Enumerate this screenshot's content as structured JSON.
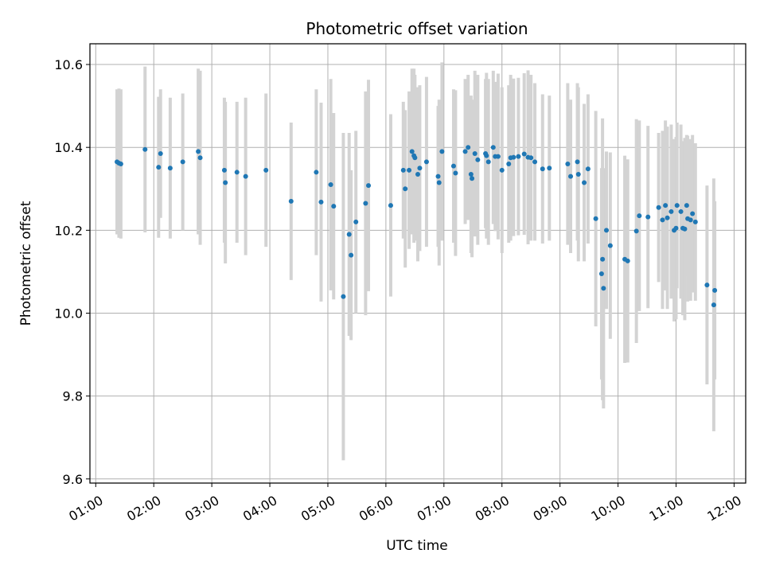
{
  "chart_data": {
    "type": "scatter",
    "title": "Photometric offset variation",
    "xlabel": "UTC time",
    "ylabel": "Photometric offset",
    "xlim": [
      "00:54",
      "12:12"
    ],
    "ylim": [
      9.59,
      10.65
    ],
    "yticks": [
      9.6,
      9.8,
      10.0,
      10.2,
      10.4,
      10.6
    ],
    "xticks": [
      "01:00",
      "02:00",
      "03:00",
      "04:00",
      "05:00",
      "06:00",
      "07:00",
      "08:00",
      "09:00",
      "10:00",
      "11:00",
      "12:00"
    ],
    "grid": true,
    "colors": {
      "points": "#1f77b4",
      "errorbars": "#d3d3d3",
      "grid": "#b0b0b0"
    },
    "series": [
      {
        "points": [
          [
            "01:22",
            10.365,
            0.175
          ],
          [
            "01:24",
            10.362,
            0.18
          ],
          [
            "01:26",
            10.36,
            0.18
          ],
          [
            "01:51",
            10.395,
            0.2
          ],
          [
            "02:05",
            10.352,
            0.17
          ],
          [
            "02:07",
            10.385,
            0.155
          ],
          [
            "02:17",
            10.35,
            0.17
          ],
          [
            "02:30",
            10.365,
            0.165
          ],
          [
            "02:46",
            10.39,
            0.2
          ],
          [
            "02:48",
            10.375,
            0.21
          ],
          [
            "03:13",
            10.345,
            0.175
          ],
          [
            "03:14",
            10.315,
            0.195
          ],
          [
            "03:26",
            10.34,
            0.17
          ],
          [
            "03:35",
            10.33,
            0.19
          ],
          [
            "03:56",
            10.345,
            0.185
          ],
          [
            "04:22",
            10.27,
            0.19
          ],
          [
            "04:48",
            10.34,
            0.2
          ],
          [
            "04:53",
            10.268,
            0.24
          ],
          [
            "05:03",
            10.31,
            0.255
          ],
          [
            "05:06",
            10.258,
            0.225
          ],
          [
            "05:16",
            10.04,
            0.395
          ],
          [
            "05:22",
            10.19,
            0.245
          ],
          [
            "05:24",
            10.14,
            0.205
          ],
          [
            "05:29",
            10.22,
            0.22
          ],
          [
            "05:39",
            10.265,
            0.27
          ],
          [
            "05:42",
            10.308,
            0.255
          ],
          [
            "06:05",
            10.26,
            0.22
          ],
          [
            "06:18",
            10.345,
            0.165
          ],
          [
            "06:20",
            10.3,
            0.19
          ],
          [
            "06:24",
            10.345,
            0.19
          ],
          [
            "06:27",
            10.39,
            0.2
          ],
          [
            "06:29",
            10.38,
            0.21
          ],
          [
            "06:30",
            10.375,
            0.2
          ],
          [
            "06:33",
            10.335,
            0.21
          ],
          [
            "06:35",
            10.35,
            0.2
          ],
          [
            "06:42",
            10.365,
            0.205
          ],
          [
            "06:54",
            10.33,
            0.17
          ],
          [
            "06:55",
            10.315,
            0.2
          ],
          [
            "06:58",
            10.39,
            0.215
          ],
          [
            "07:10",
            10.355,
            0.185
          ],
          [
            "07:12",
            10.338,
            0.2
          ],
          [
            "07:22",
            10.39,
            0.175
          ],
          [
            "07:25",
            10.4,
            0.175
          ],
          [
            "07:28",
            10.335,
            0.19
          ],
          [
            "07:29",
            10.325,
            0.19
          ],
          [
            "07:32",
            10.385,
            0.2
          ],
          [
            "07:35",
            10.37,
            0.205
          ],
          [
            "07:43",
            10.385,
            0.18
          ],
          [
            "07:44",
            10.38,
            0.2
          ],
          [
            "07:46",
            10.365,
            0.2
          ],
          [
            "07:51",
            10.4,
            0.185
          ],
          [
            "07:53",
            10.378,
            0.18
          ],
          [
            "07:56",
            10.378,
            0.2
          ],
          [
            "08:00",
            10.345,
            0.2
          ],
          [
            "08:07",
            10.36,
            0.19
          ],
          [
            "08:09",
            10.375,
            0.2
          ],
          [
            "08:12",
            10.376,
            0.19
          ],
          [
            "08:17",
            10.378,
            0.19
          ],
          [
            "08:23",
            10.384,
            0.195
          ],
          [
            "08:27",
            10.376,
            0.21
          ],
          [
            "08:30",
            10.375,
            0.2
          ],
          [
            "08:34",
            10.365,
            0.19
          ],
          [
            "08:42",
            10.348,
            0.18
          ],
          [
            "08:49",
            10.35,
            0.175
          ],
          [
            "09:08",
            10.36,
            0.195
          ],
          [
            "09:11",
            10.33,
            0.185
          ],
          [
            "09:18",
            10.365,
            0.19
          ],
          [
            "09:19",
            10.335,
            0.21
          ],
          [
            "09:25",
            10.315,
            0.19
          ],
          [
            "09:29",
            10.348,
            0.18
          ],
          [
            "09:37",
            10.228,
            0.26
          ],
          [
            "09:43",
            10.095,
            0.255
          ],
          [
            "09:44",
            10.13,
            0.34
          ],
          [
            "09:45",
            10.06,
            0.29
          ],
          [
            "09:48",
            10.2,
            0.19
          ],
          [
            "09:52",
            10.163,
            0.225
          ],
          [
            "10:07",
            10.13,
            0.25
          ],
          [
            "10:10",
            10.126,
            0.245
          ],
          [
            "10:19",
            10.198,
            0.27
          ],
          [
            "10:22",
            10.235,
            0.23
          ],
          [
            "10:31",
            10.232,
            0.22
          ],
          [
            "10:42",
            10.255,
            0.18
          ],
          [
            "10:46",
            10.225,
            0.215
          ],
          [
            "10:49",
            10.26,
            0.205
          ],
          [
            "10:51",
            10.23,
            0.22
          ],
          [
            "10:55",
            10.245,
            0.21
          ],
          [
            "10:58",
            10.2,
            0.22
          ],
          [
            "11:00",
            10.205,
            0.22
          ],
          [
            "11:01",
            10.26,
            0.2
          ],
          [
            "11:05",
            10.245,
            0.21
          ],
          [
            "11:07",
            10.205,
            0.21
          ],
          [
            "11:09",
            10.203,
            0.22
          ],
          [
            "11:11",
            10.26,
            0.17
          ],
          [
            "11:12",
            10.228,
            0.2
          ],
          [
            "11:15",
            10.225,
            0.195
          ],
          [
            "11:17",
            10.24,
            0.19
          ],
          [
            "11:20",
            10.22,
            0.19
          ],
          [
            "11:32",
            10.068,
            0.24
          ],
          [
            "11:39",
            10.02,
            0.305
          ],
          [
            "11:40",
            10.055,
            0.215
          ]
        ]
      }
    ]
  }
}
